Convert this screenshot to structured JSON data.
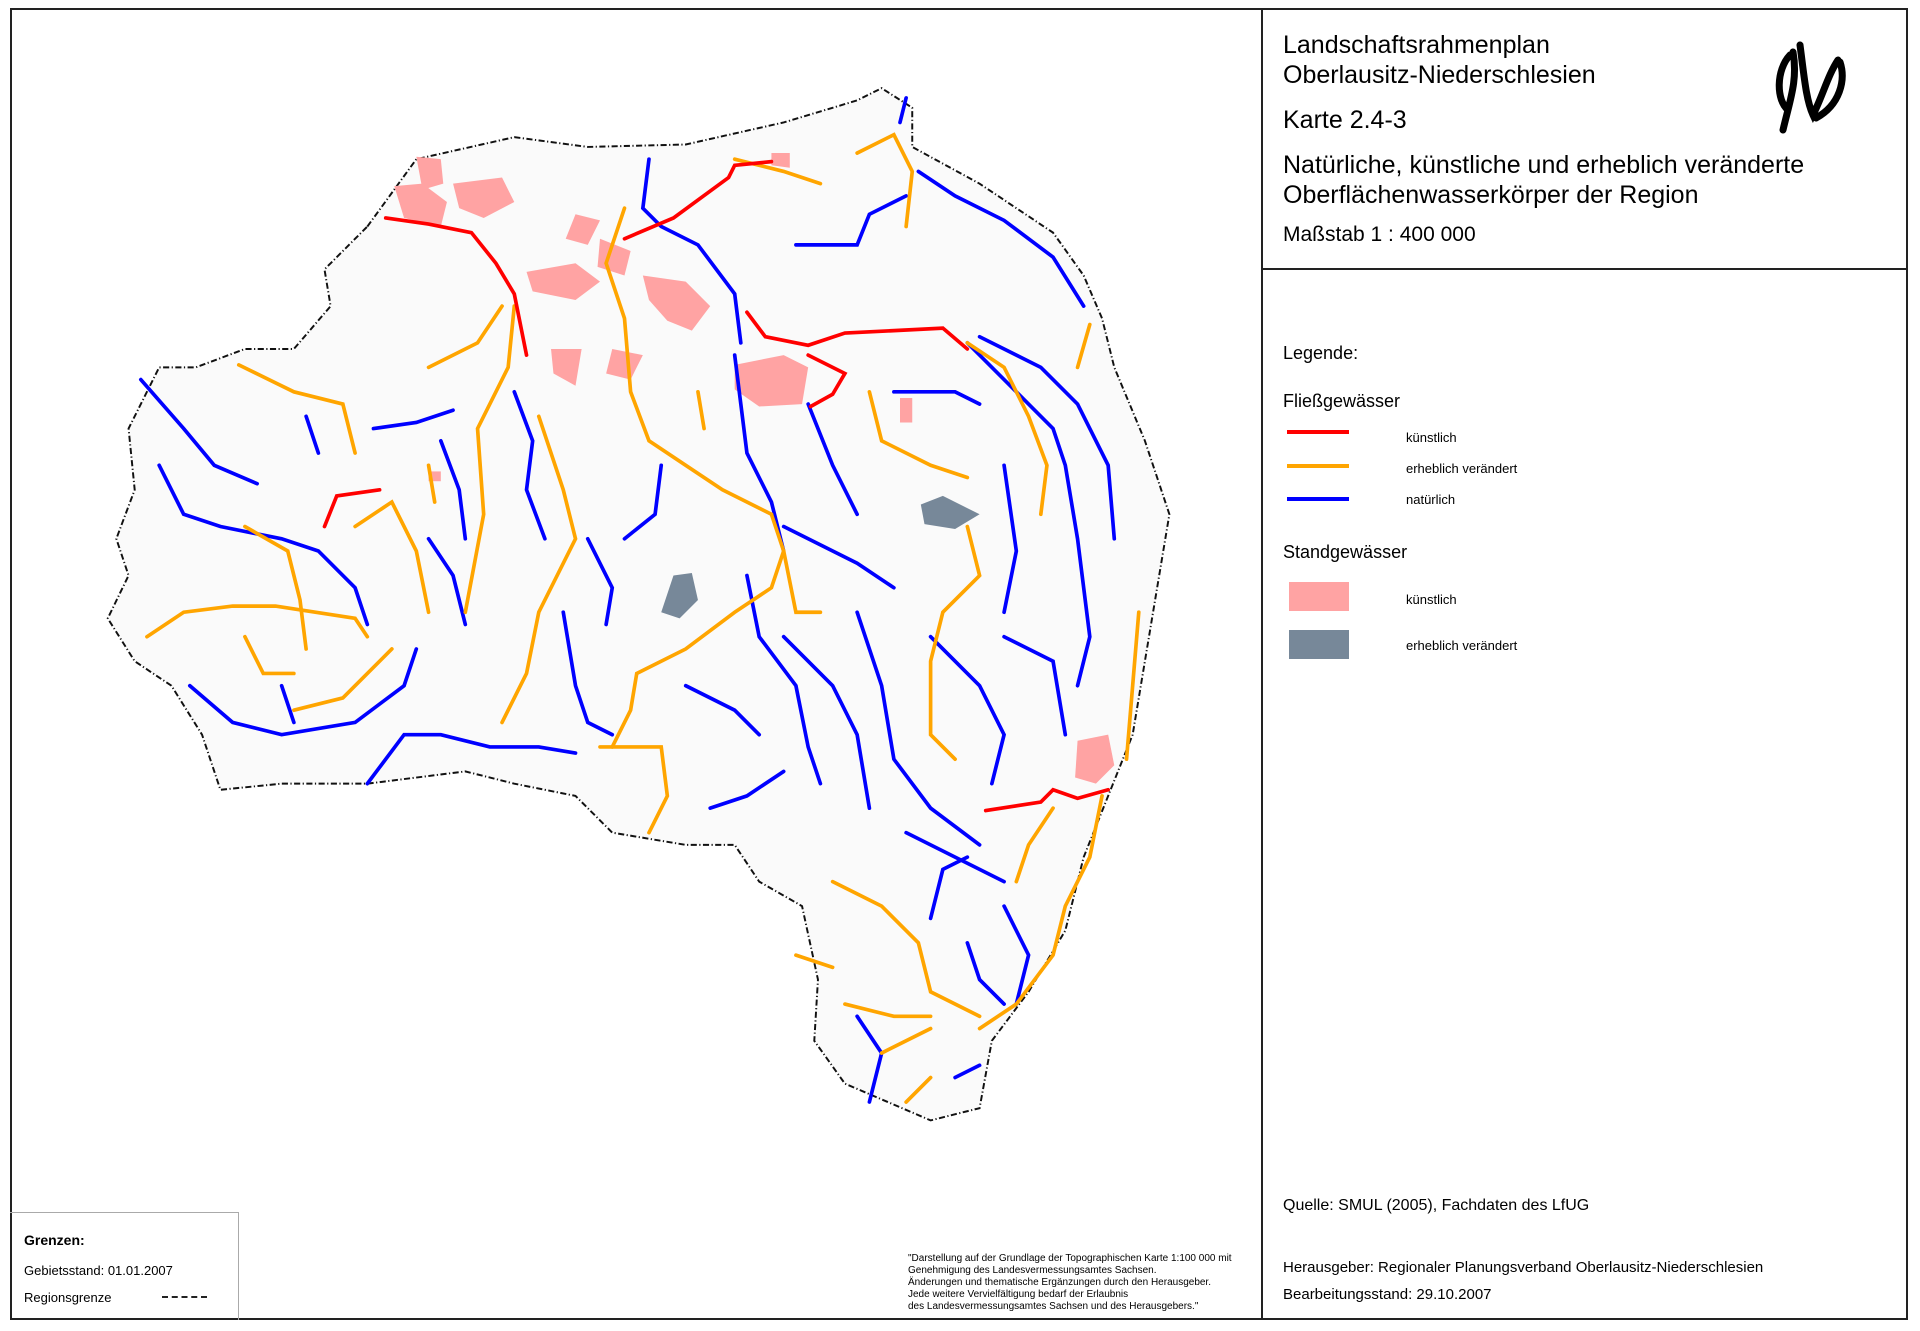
{
  "title": {
    "line1": "Landschaftsrahmenplan",
    "line2": "Oberlausitz-Niederschlesien",
    "map_number": "Karte 2.4-3",
    "subtitle_line1": "Natürliche, künstliche und erheblich  veränderte",
    "subtitle_line2": "Oberflächenwasserkörper der Region",
    "scale": "Maßstab 1 : 400 000"
  },
  "logo": {
    "icon": "signature-logo"
  },
  "legend": {
    "heading": "Legende:",
    "flowing_heading": "Fließgewässer",
    "flowing": [
      {
        "label": "künstlich",
        "color": "#ff0000"
      },
      {
        "label": "erheblich verändert",
        "color": "#ffa500"
      },
      {
        "label": "natürlich",
        "color": "#0000ff"
      }
    ],
    "standing_heading": "Standgewässer",
    "standing": [
      {
        "label": "künstlich",
        "color": "#ffa3a3"
      },
      {
        "label": "erheblich verändert",
        "color": "#778899"
      }
    ]
  },
  "source": "Quelle: SMUL (2005), Fachdaten des LfUG",
  "publisher": "Herausgeber:  Regionaler Planungsverband Oberlausitz-Niederschlesien",
  "edit_date": "Bearbeitungsstand:  29.10.2007",
  "disclaimer": [
    "\"Darstellung auf der Grundlage der Topographischen Karte 1:100 000 mit",
    "Genehmigung des Landesvermessungsamtes Sachsen.",
    "Änderungen und thematische Ergänzungen durch den Herausgeber.",
    "Jede weitere Vervielfältigung bedarf  der Erlaubnis",
    "des Landesvermessungsamtes Sachsen und des Herausgebers.\""
  ],
  "borders": {
    "heading": "Grenzen:",
    "territory_date": "Gebietsstand: 01.01.2007",
    "region_border": "Regionsgrenze"
  }
}
